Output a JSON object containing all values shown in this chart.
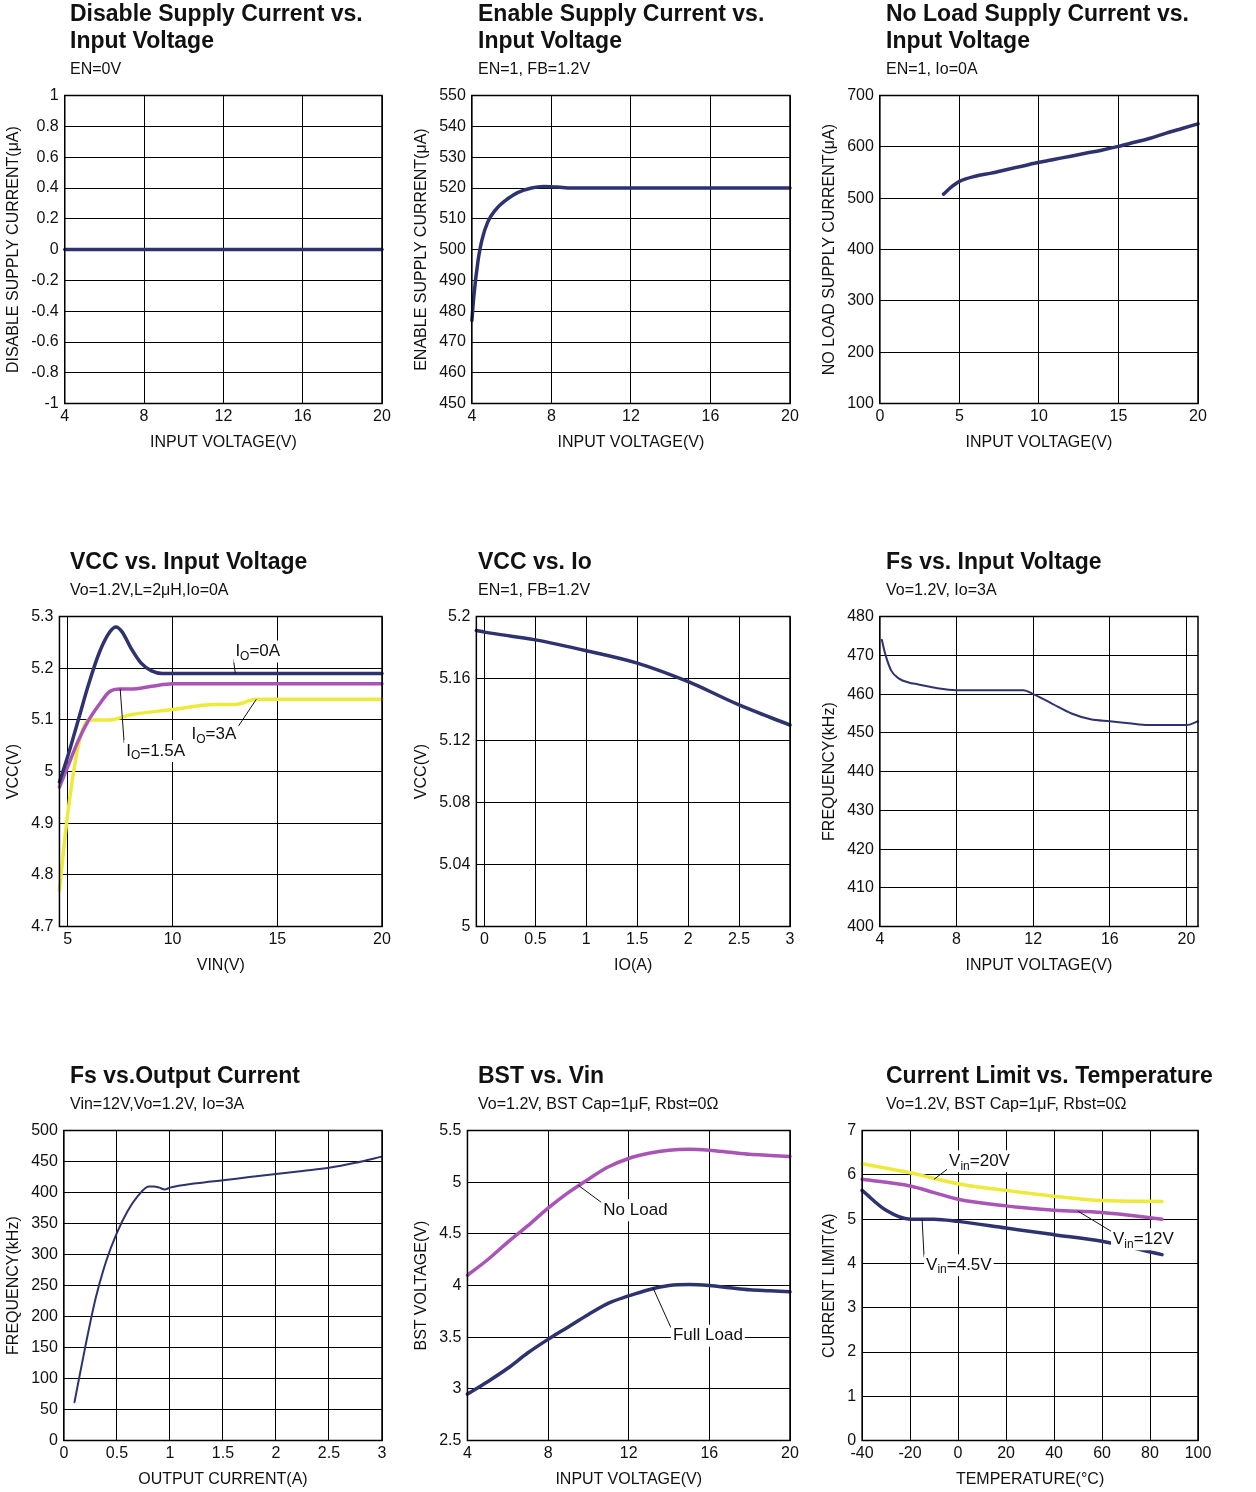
{
  "chart_data": [
    {
      "type": "line",
      "title": "Disable Supply Current vs. Input Voltage",
      "subtitle": "EN=0V",
      "xlabel": "INPUT VOLTAGE(V)",
      "ylabel": "DISABLE SUPPLY CURRENT(μA)",
      "xlim": [
        4,
        20
      ],
      "xticks": [
        4,
        8,
        12,
        16,
        20
      ],
      "ylim": [
        -1,
        1
      ],
      "yticks": [
        -1,
        -0.8,
        -0.6,
        -0.4,
        -0.2,
        0,
        0.2,
        0.4,
        0.6,
        0.8,
        1
      ],
      "grid": true,
      "series": [
        {
          "color": "#2e3370",
          "x": [
            4,
            20
          ],
          "values": [
            0,
            0
          ]
        }
      ]
    },
    {
      "type": "line",
      "title": "Enable Supply Current vs. Input Voltage",
      "subtitle": "EN=1, FB=1.2V",
      "xlabel": "INPUT VOLTAGE(V)",
      "ylabel": "ENABLE SUPPLY CURRENT(μA)",
      "xlim": [
        4,
        20
      ],
      "xticks": [
        4,
        8,
        12,
        16,
        20
      ],
      "ylim": [
        450,
        550
      ],
      "yticks": [
        450,
        460,
        470,
        480,
        490,
        500,
        510,
        520,
        530,
        540,
        550
      ],
      "grid": true,
      "series": [
        {
          "color": "#2e3370",
          "x": [
            4,
            4.1,
            4.3,
            4.5,
            4.8,
            5.2,
            5.7,
            6.3,
            7,
            7.6,
            8.3,
            9,
            12,
            16,
            20
          ],
          "values": [
            477,
            485,
            496,
            503,
            509,
            513,
            516,
            518.5,
            520,
            520.5,
            520.3,
            520,
            520,
            520,
            520
          ]
        }
      ]
    },
    {
      "type": "line",
      "title": "No Load Supply Current vs. Input Voltage",
      "subtitle": "EN=1, Io=0A",
      "xlabel": "INPUT VOLTAGE(V)",
      "ylabel": "NO LOAD SUPPLY CURRENT(μA)",
      "xlim": [
        0,
        20
      ],
      "xticks": [
        0,
        5,
        10,
        15,
        20
      ],
      "ylim": [
        100,
        700
      ],
      "yticks": [
        100,
        200,
        300,
        400,
        500,
        600,
        700
      ],
      "grid": true,
      "series": [
        {
          "color": "#2e3370",
          "x": [
            4,
            4.5,
            5,
            6,
            7,
            8,
            9,
            10,
            11,
            12,
            13,
            14,
            15,
            16,
            17,
            18,
            19,
            20
          ],
          "values": [
            508,
            522,
            533,
            543,
            549,
            556,
            563,
            570,
            576,
            582,
            588,
            594,
            601,
            609,
            617,
            627,
            636,
            645
          ]
        }
      ]
    },
    {
      "type": "line",
      "title": "VCC vs. Input Voltage",
      "subtitle": "Vo=1.2V,L=2μH,Io=0A",
      "xlabel": "VIN(V)",
      "ylabel": "VCC(V)",
      "xlim": [
        4.6,
        20
      ],
      "xticks": [
        5,
        10,
        15,
        20
      ],
      "ylim": [
        4.7,
        5.3
      ],
      "yticks": [
        4.7,
        4.8,
        4.9,
        5,
        5.1,
        5.2,
        5.3
      ],
      "grid": true,
      "series": [
        {
          "color": "#2e3370",
          "x": [
            4.6,
            5,
            5.5,
            6,
            6.5,
            7,
            7.3,
            7.6,
            8,
            8.5,
            9,
            9.5,
            10,
            12,
            15,
            20
          ],
          "values": [
            4.98,
            5.03,
            5.1,
            5.17,
            5.23,
            5.27,
            5.28,
            5.27,
            5.24,
            5.21,
            5.195,
            5.19,
            5.19,
            5.19,
            5.19,
            5.19
          ]
        },
        {
          "color": "#a855b5",
          "x": [
            4.6,
            5,
            5.5,
            6,
            6.5,
            7,
            7.5,
            8,
            9,
            10,
            12,
            15,
            20
          ],
          "values": [
            4.97,
            5.01,
            5.06,
            5.1,
            5.13,
            5.155,
            5.16,
            5.16,
            5.165,
            5.17,
            5.17,
            5.17,
            5.17
          ]
        },
        {
          "color": "#eeea3a",
          "x": [
            4.6,
            5,
            5.5,
            6,
            7,
            8,
            10,
            12,
            13,
            14,
            16,
            20
          ],
          "values": [
            4.77,
            4.92,
            5.05,
            5.1,
            5.1,
            5.11,
            5.12,
            5.13,
            5.13,
            5.14,
            5.14,
            5.14
          ]
        }
      ],
      "annotations": [
        {
          "text": "I$_{O}$=0A",
          "x": 13,
          "y": 5.19
        },
        {
          "text": "I$_{O}$=1.5A",
          "x": 7.5,
          "y": 5.16
        },
        {
          "text": "I$_{O}$=3A",
          "x": 14,
          "y": 5.14
        }
      ]
    },
    {
      "type": "line",
      "title": "VCC vs. Io",
      "subtitle": "EN=1, FB=1.2V",
      "xlabel": "IO(A)",
      "ylabel": "VCC(V)",
      "xlim": [
        -0.08,
        3
      ],
      "xticks": [
        0,
        0.5,
        1,
        1.5,
        2,
        2.5,
        3
      ],
      "ylim": [
        5,
        5.2
      ],
      "yticks": [
        5,
        5.04,
        5.08,
        5.12,
        5.16,
        5.2
      ],
      "grid": true,
      "series": [
        {
          "color": "#2e3370",
          "x": [
            -0.08,
            0,
            0.5,
            1,
            1.5,
            2,
            2.5,
            3
          ],
          "values": [
            5.191,
            5.19,
            5.185,
            5.178,
            5.17,
            5.158,
            5.143,
            5.13
          ]
        }
      ]
    },
    {
      "type": "line",
      "title": "Fs vs. Input Voltage",
      "subtitle": "Vo=1.2V, Io=3A",
      "xlabel": "INPUT VOLTAGE(V)",
      "ylabel": "FREQUENCY(kHz)",
      "xlim": [
        4,
        20.6
      ],
      "xticks": [
        4,
        8,
        12,
        16,
        20
      ],
      "ylim": [
        400,
        480
      ],
      "yticks": [
        400,
        410,
        420,
        430,
        440,
        450,
        460,
        470,
        480
      ],
      "grid": true,
      "series": [
        {
          "color": "#2e3370",
          "x": [
            4.1,
            4.3,
            4.6,
            5,
            5.5,
            6,
            7,
            8,
            9,
            10,
            11,
            11.5,
            12,
            13,
            14,
            15,
            16,
            17,
            18,
            19,
            20,
            20.6
          ],
          "values": [
            474,
            470,
            466,
            464,
            463,
            462.5,
            461.5,
            461,
            461,
            461,
            461,
            461,
            460,
            457.5,
            455,
            453.5,
            453,
            452.5,
            452,
            452,
            452,
            453
          ]
        }
      ]
    },
    {
      "type": "line",
      "title": "Fs vs.Output Current",
      "subtitle": "Vin=12V,Vo=1.2V, Io=3A",
      "xlabel": "OUTPUT CURRENT(A)",
      "ylabel": "FREQUENCY(kHz)",
      "xlim": [
        0,
        3
      ],
      "xticks": [
        0,
        0.5,
        1,
        1.5,
        2,
        2.5,
        3
      ],
      "ylim": [
        0,
        500
      ],
      "yticks": [
        0,
        50,
        100,
        150,
        200,
        250,
        300,
        350,
        400,
        450,
        500
      ],
      "grid": true,
      "series": [
        {
          "color": "#2e3370",
          "x": [
            0.1,
            0.2,
            0.3,
            0.4,
            0.5,
            0.6,
            0.7,
            0.8,
            0.85,
            0.9,
            0.95,
            1,
            1.25,
            1.5,
            1.75,
            2,
            2.25,
            2.5,
            2.75,
            3
          ],
          "values": [
            62,
            150,
            230,
            290,
            335,
            370,
            395,
            410,
            410,
            408,
            405,
            408,
            415,
            420,
            425,
            430,
            435,
            440,
            448,
            458
          ]
        }
      ]
    },
    {
      "type": "line",
      "title": "BST vs. Vin",
      "subtitle": "Vo=1.2V, BST Cap=1μF, Rbst=0Ω",
      "xlabel": "INPUT VOLTAGE(V)",
      "ylabel": "BST VOLTAGE(V)",
      "xlim": [
        4,
        20
      ],
      "xticks": [
        4,
        8,
        12,
        16,
        20
      ],
      "ylim": [
        2.5,
        5.5
      ],
      "yticks": [
        2.5,
        3,
        3.5,
        4,
        4.5,
        5,
        5.5
      ],
      "grid": true,
      "series": [
        {
          "color": "#a855b5",
          "x": [
            4,
            5,
            6,
            7,
            8,
            9,
            10,
            11,
            12,
            13,
            14,
            15,
            16,
            17,
            18,
            19,
            20
          ],
          "values": [
            4.1,
            4.25,
            4.42,
            4.58,
            4.75,
            4.9,
            5.03,
            5.15,
            5.23,
            5.28,
            5.31,
            5.32,
            5.31,
            5.29,
            5.27,
            5.26,
            5.25
          ]
        },
        {
          "color": "#2e3370",
          "x": [
            4,
            5,
            6,
            7,
            8,
            9,
            10,
            11,
            12,
            13,
            14,
            15,
            16,
            17,
            18,
            19,
            20
          ],
          "values": [
            2.95,
            3.07,
            3.2,
            3.35,
            3.48,
            3.6,
            3.72,
            3.83,
            3.9,
            3.96,
            4,
            4.01,
            4,
            3.98,
            3.96,
            3.95,
            3.94
          ]
        }
      ],
      "annotations": [
        {
          "text": "No Load",
          "x": 9.5,
          "y": 4.97
        },
        {
          "text": "Full Load",
          "x": 13.2,
          "y": 3.98
        }
      ]
    },
    {
      "type": "line",
      "title": "Current Limit vs. Temperature",
      "subtitle": "Vo=1.2V, BST Cap=1μF, Rbst=0Ω",
      "xlabel": "TEMPERATURE(°C)",
      "ylabel": "CURRENT LIMIT(A)",
      "xlim": [
        -40,
        100
      ],
      "xticks": [
        -40,
        -20,
        0,
        20,
        40,
        60,
        80,
        100
      ],
      "ylim": [
        0,
        7
      ],
      "yticks": [
        0,
        1,
        2,
        3,
        4,
        5,
        6,
        7
      ],
      "grid": true,
      "series": [
        {
          "color": "#eeea3a",
          "x": [
            -40,
            -20,
            0,
            20,
            40,
            60,
            85
          ],
          "values": [
            6.25,
            6.05,
            5.8,
            5.65,
            5.52,
            5.42,
            5.4
          ]
        },
        {
          "color": "#a855b5",
          "x": [
            -40,
            -20,
            -10,
            0,
            20,
            40,
            60,
            85
          ],
          "values": [
            5.9,
            5.75,
            5.6,
            5.45,
            5.3,
            5.2,
            5.15,
            5
          ]
        },
        {
          "color": "#2e3370",
          "x": [
            -40,
            -30,
            -20,
            -10,
            0,
            20,
            40,
            60,
            85
          ],
          "values": [
            5.65,
            5.2,
            5,
            5,
            4.95,
            4.8,
            4.65,
            4.5,
            4.2
          ]
        }
      ],
      "annotations": [
        {
          "text": "V$_{in}$=20V",
          "x": -10,
          "y": 5.9
        },
        {
          "text": "V$_{in}$=12V",
          "x": 50,
          "y": 5.18
        },
        {
          "text": "V$_{in}$=4.5V",
          "x": -15,
          "y": 5
        }
      ]
    }
  ]
}
